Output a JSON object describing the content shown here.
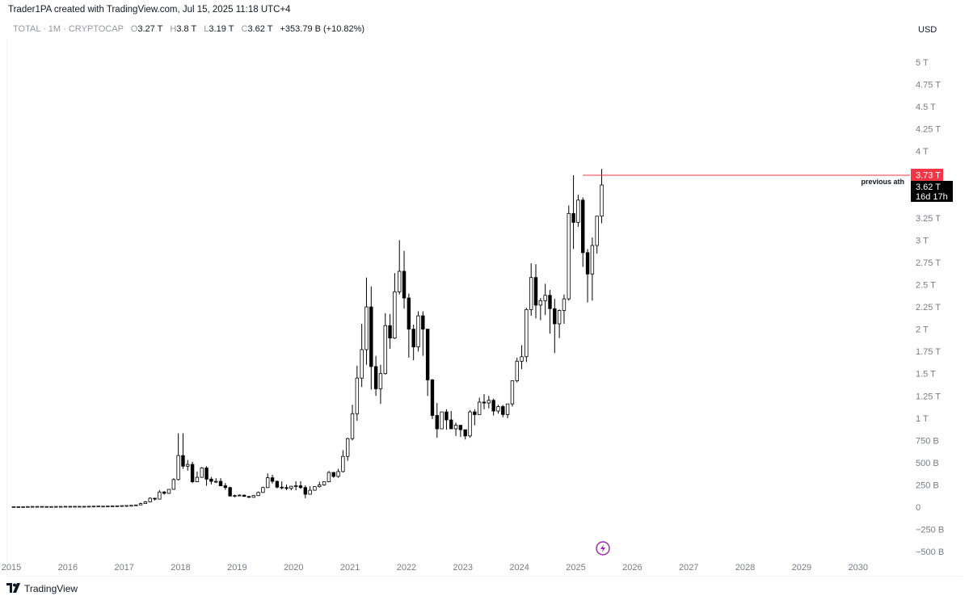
{
  "header": {
    "text": "Trader1PA created with TradingView.com, Jul 15, 2025 11:18 UTC+4"
  },
  "legend": {
    "symbol": "TOTAL · 1M · CRYPTOCAP",
    "open_label": "O",
    "open": "3.27 T",
    "high_label": "H",
    "high": "3.8 T",
    "low_label": "L",
    "low": "3.19 T",
    "close_label": "C",
    "close": "3.62 T",
    "change": "+353.79 B (+10.82%)"
  },
  "currency": "USD",
  "footer": {
    "logo_icon": "tradingview-logo-icon",
    "brand": "TradingView"
  },
  "colors": {
    "up_body": "#ffffff",
    "down_body": "#000000",
    "wick": "#000000",
    "ath_line": "#f23645",
    "ath_label_bg": "#f23645",
    "price_label_bg": "#000000",
    "axis_text": "#787b86",
    "bolt_icon": "#9c27b0"
  },
  "chart_data": {
    "type": "candlestick",
    "symbol": "TOTAL",
    "interval": "1M",
    "source": "CRYPTOCAP",
    "y_unit": "USD",
    "ylim": [
      -500000000000,
      5250000000000
    ],
    "y_ticks": [
      {
        "value": 5000000000000,
        "label": "5 T"
      },
      {
        "value": 4750000000000,
        "label": "4.75 T"
      },
      {
        "value": 4500000000000,
        "label": "4.5 T"
      },
      {
        "value": 4250000000000,
        "label": "4.25 T"
      },
      {
        "value": 4000000000000,
        "label": "4 T"
      },
      {
        "value": 3250000000000,
        "label": "3.25 T"
      },
      {
        "value": 3000000000000,
        "label": "3 T"
      },
      {
        "value": 2750000000000,
        "label": "2.75 T"
      },
      {
        "value": 2500000000000,
        "label": "2.5 T"
      },
      {
        "value": 2250000000000,
        "label": "2.25 T"
      },
      {
        "value": 2000000000000,
        "label": "2 T"
      },
      {
        "value": 1750000000000,
        "label": "1.75 T"
      },
      {
        "value": 1500000000000,
        "label": "1.5 T"
      },
      {
        "value": 1250000000000,
        "label": "1.25 T"
      },
      {
        "value": 1000000000000,
        "label": "1 T"
      },
      {
        "value": 750000000000,
        "label": "750 B"
      },
      {
        "value": 500000000000,
        "label": "500 B"
      },
      {
        "value": 250000000000,
        "label": "250 B"
      },
      {
        "value": 0,
        "label": "0"
      },
      {
        "value": -250000000000,
        "label": "−250 B"
      },
      {
        "value": -500000000000,
        "label": "−500 B"
      }
    ],
    "x_ticks": [
      "2015",
      "2016",
      "2017",
      "2018",
      "2019",
      "2020",
      "2021",
      "2022",
      "2023",
      "2024",
      "2025",
      "2026",
      "2027",
      "2028",
      "2029",
      "2030"
    ],
    "first_year": 2015,
    "unit_scale": 1000000000,
    "candles_ohlc_billions": [
      [
        6,
        6,
        6,
        6
      ],
      [
        5,
        5,
        5,
        5
      ],
      [
        6,
        6,
        6,
        6
      ],
      [
        7,
        7,
        7,
        7
      ],
      [
        8,
        8,
        8,
        8
      ],
      [
        8,
        8,
        8,
        8
      ],
      [
        8,
        8,
        8,
        8
      ],
      [
        7,
        7,
        7,
        7
      ],
      [
        7,
        7,
        7,
        7
      ],
      [
        8,
        8,
        8,
        8
      ],
      [
        8,
        8,
        8,
        8
      ],
      [
        9,
        9,
        9,
        9
      ],
      [
        9,
        9,
        9,
        9
      ],
      [
        9,
        9,
        9,
        9
      ],
      [
        9,
        9,
        9,
        9
      ],
      [
        9,
        9,
        9,
        9
      ],
      [
        10,
        10,
        10,
        10
      ],
      [
        11,
        11,
        11,
        11
      ],
      [
        12,
        12,
        12,
        12
      ],
      [
        11,
        11,
        11,
        11
      ],
      [
        12,
        12,
        12,
        12
      ],
      [
        13,
        13,
        13,
        13
      ],
      [
        15,
        15,
        15,
        15
      ],
      [
        17,
        17,
        17,
        17
      ],
      [
        17,
        19,
        16,
        18
      ],
      [
        18,
        22,
        17,
        20
      ],
      [
        20,
        26,
        19,
        25
      ],
      [
        25,
        50,
        24,
        40
      ],
      [
        40,
        70,
        38,
        60
      ],
      [
        60,
        110,
        55,
        100
      ],
      [
        100,
        105,
        75,
        90
      ],
      [
        90,
        190,
        88,
        170
      ],
      [
        170,
        180,
        140,
        155
      ],
      [
        155,
        200,
        150,
        200
      ],
      [
        200,
        325,
        195,
        310
      ],
      [
        310,
        830,
        300,
        580
      ],
      [
        580,
        830,
        430,
        460
      ],
      [
        460,
        530,
        410,
        480
      ],
      [
        480,
        510,
        270,
        285
      ],
      [
        285,
        400,
        280,
        335
      ],
      [
        335,
        450,
        330,
        440
      ],
      [
        440,
        460,
        240,
        315
      ],
      [
        315,
        340,
        255,
        290
      ],
      [
        290,
        325,
        270,
        290
      ],
      [
        290,
        325,
        235,
        240
      ],
      [
        240,
        270,
        195,
        220
      ],
      [
        220,
        230,
        120,
        125
      ],
      [
        125,
        140,
        110,
        130
      ],
      [
        130,
        145,
        125,
        135
      ],
      [
        135,
        140,
        125,
        120
      ],
      [
        120,
        125,
        105,
        110
      ],
      [
        110,
        135,
        110,
        130
      ],
      [
        130,
        175,
        125,
        165
      ],
      [
        165,
        230,
        160,
        220
      ],
      [
        220,
        380,
        215,
        330
      ],
      [
        330,
        365,
        265,
        290
      ],
      [
        290,
        300,
        210,
        225
      ],
      [
        225,
        290,
        200,
        220
      ],
      [
        220,
        255,
        190,
        210
      ],
      [
        210,
        240,
        190,
        235
      ],
      [
        235,
        290,
        190,
        240
      ],
      [
        240,
        290,
        205,
        220
      ],
      [
        220,
        245,
        100,
        145
      ],
      [
        145,
        235,
        140,
        190
      ],
      [
        190,
        235,
        185,
        230
      ],
      [
        230,
        285,
        220,
        250
      ],
      [
        250,
        285,
        240,
        285
      ],
      [
        285,
        405,
        280,
        390
      ],
      [
        390,
        395,
        330,
        345
      ],
      [
        345,
        430,
        330,
        400
      ],
      [
        400,
        640,
        390,
        570
      ],
      [
        570,
        780,
        520,
        770
      ],
      [
        770,
        1150,
        750,
        1050
      ],
      [
        1050,
        1590,
        970,
        1450
      ],
      [
        1450,
        2060,
        1350,
        1770
      ],
      [
        1770,
        2580,
        1600,
        2250
      ],
      [
        2250,
        2480,
        1320,
        1580
      ],
      [
        1580,
        1700,
        1250,
        1330
      ],
      [
        1330,
        1600,
        1160,
        1500
      ],
      [
        1500,
        2180,
        1490,
        2040
      ],
      [
        2040,
        2170,
        1780,
        1900
      ],
      [
        1900,
        2630,
        1890,
        2420
      ],
      [
        2420,
        3000,
        2390,
        2650
      ],
      [
        2650,
        2880,
        2230,
        2350
      ],
      [
        2350,
        2400,
        1680,
        2000
      ],
      [
        2000,
        2050,
        1650,
        1800
      ],
      [
        1800,
        2200,
        1750,
        2150
      ],
      [
        2150,
        2200,
        1700,
        2000
      ],
      [
        2000,
        2000,
        1250,
        1430
      ],
      [
        1430,
        1440,
        990,
        1030
      ],
      [
        1030,
        1170,
        780,
        880
      ],
      [
        880,
        1060,
        880,
        1070
      ],
      [
        1070,
        1100,
        870,
        980
      ],
      [
        980,
        1080,
        930,
        880
      ],
      [
        880,
        950,
        800,
        920
      ],
      [
        920,
        920,
        790,
        870
      ],
      [
        870,
        870,
        760,
        800
      ],
      [
        800,
        1090,
        780,
        1070
      ],
      [
        1070,
        1100,
        920,
        1040
      ],
      [
        1040,
        1230,
        1040,
        1180
      ],
      [
        1180,
        1270,
        1100,
        1170
      ],
      [
        1170,
        1250,
        1110,
        1200
      ],
      [
        1200,
        1220,
        1030,
        1080
      ],
      [
        1080,
        1150,
        1050,
        1130
      ],
      [
        1130,
        1150,
        1010,
        1040
      ],
      [
        1040,
        1140,
        1000,
        1160
      ],
      [
        1160,
        1400,
        1130,
        1420
      ],
      [
        1420,
        1680,
        1400,
        1640
      ],
      [
        1640,
        1820,
        1550,
        1690
      ],
      [
        1690,
        2240,
        1630,
        2220
      ],
      [
        2220,
        2740,
        2150,
        2580
      ],
      [
        2580,
        2730,
        2120,
        2270
      ],
      [
        2270,
        2350,
        2100,
        2320
      ],
      [
        2320,
        2510,
        2160,
        2380
      ],
      [
        2380,
        2440,
        1950,
        2230
      ],
      [
        2230,
        2340,
        1730,
        2060
      ],
      [
        2060,
        2220,
        1900,
        2210
      ],
      [
        2210,
        2390,
        2060,
        2340
      ],
      [
        2340,
        3390,
        2320,
        3300
      ],
      [
        3300,
        3730,
        2900,
        3200
      ],
      [
        3200,
        3510,
        3150,
        3450
      ],
      [
        3450,
        3480,
        2700,
        2860
      ],
      [
        2860,
        2900,
        2300,
        2620
      ],
      [
        2620,
        3030,
        2320,
        2940
      ],
      [
        2940,
        3250,
        2850,
        3270
      ],
      [
        3270,
        3800,
        3190,
        3620
      ]
    ],
    "annotations": [
      {
        "type": "horizontal_line",
        "value": 3730000000000,
        "label": "previous ath",
        "price_label": "3.73 T"
      }
    ],
    "last_price_label": "3.62 T",
    "countdown": "16d 17h",
    "grid": "off",
    "legend": "top-left"
  }
}
